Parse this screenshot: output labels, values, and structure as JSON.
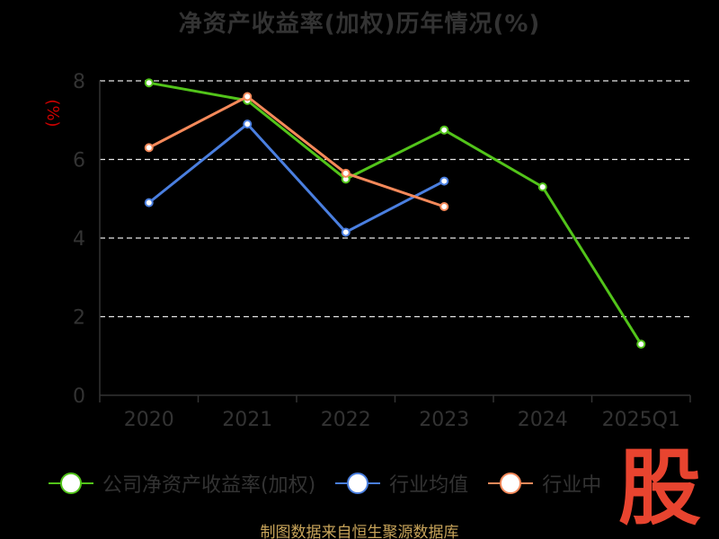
{
  "page": {
    "title": "净资产收益率(加权)历年情况(%)",
    "source_text": "制图数据来自恒生聚源数据库",
    "watermark_text": "股"
  },
  "legend": [
    {
      "label": "公司净资产收益率(加权)",
      "color": "#52c41a"
    },
    {
      "label": "行业均值",
      "color": "#4a7fe0"
    },
    {
      "label": "行业中",
      "color": "#f5895a"
    }
  ],
  "chart_data": {
    "type": "line",
    "title": "净资产收益率(加权)历年情况(%)",
    "ylabel": "(%)",
    "ylabel_color": "#cc0000",
    "categories": [
      "2020",
      "2021",
      "2022",
      "2023",
      "2024",
      "2025Q1"
    ],
    "ylim": [
      0,
      8
    ],
    "yticks": [
      0,
      2,
      4,
      6,
      8
    ],
    "grid": true,
    "legend_position": "bottom",
    "series": [
      {
        "name": "公司净资产收益率(加权)",
        "color": "#52c41a",
        "values": [
          7.95,
          7.5,
          5.5,
          6.75,
          5.3,
          1.3
        ]
      },
      {
        "name": "行业均值",
        "color": "#4a7fe0",
        "values": [
          4.9,
          6.9,
          4.15,
          5.45,
          null,
          null
        ]
      },
      {
        "name": "行业中",
        "color": "#f5895a",
        "values": [
          6.3,
          7.6,
          5.65,
          4.8,
          null,
          null
        ]
      }
    ]
  }
}
